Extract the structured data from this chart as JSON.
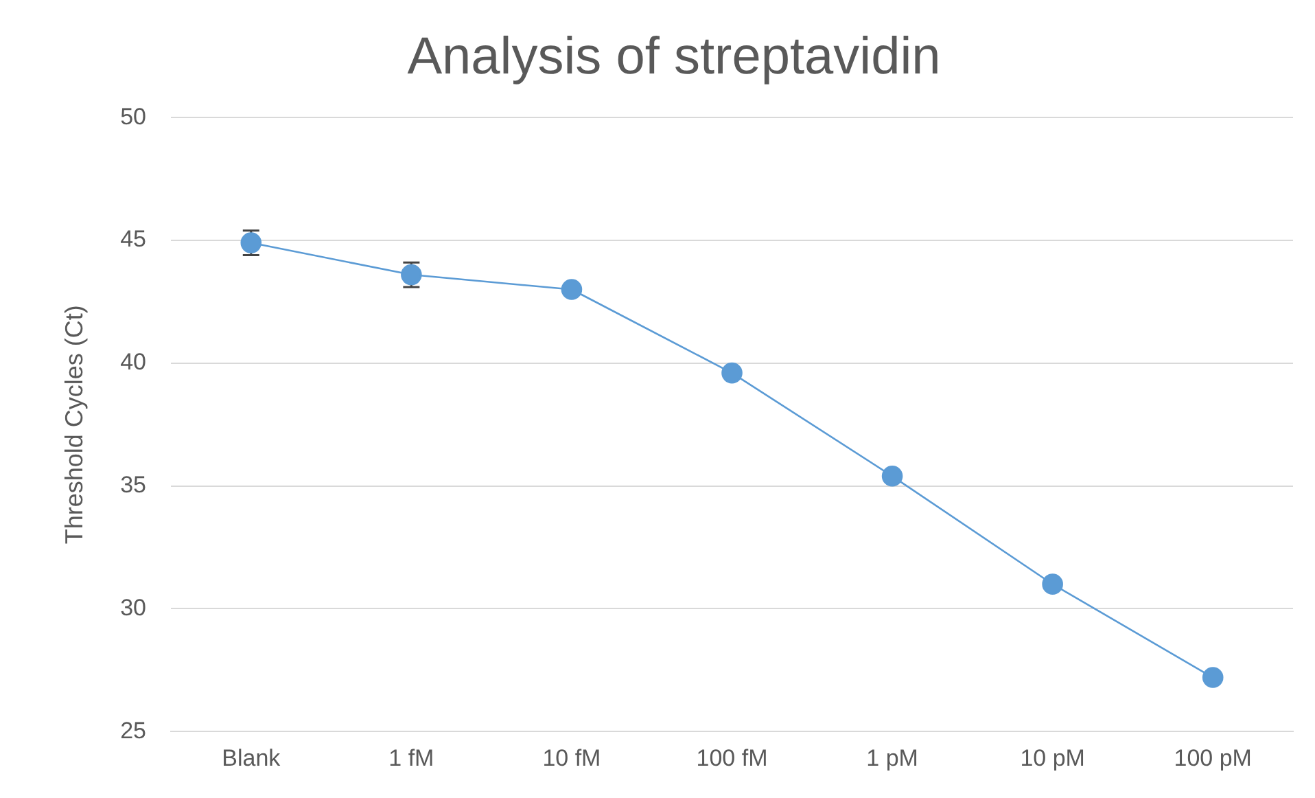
{
  "chart_data": {
    "type": "line",
    "title": "Analysis of streptavidin",
    "ylabel": "Threshold Cycles (Ct)",
    "categories": [
      "Blank",
      "1 fM",
      "10 fM",
      "100 fM",
      "1 pM",
      "10 pM",
      "100 pM"
    ],
    "series": [
      {
        "color": "#5b9bd5",
        "values": [
          44.9,
          43.6,
          43.0,
          39.6,
          35.4,
          31.0,
          27.2
        ],
        "errors": [
          0.5,
          0.5,
          null,
          null,
          null,
          null,
          null
        ]
      }
    ],
    "ylim": [
      25,
      50
    ],
    "yticks": [
      25,
      30,
      35,
      40,
      45,
      50
    ],
    "grid": "y",
    "legend": false,
    "marker": "circle",
    "line_style": "solid"
  }
}
